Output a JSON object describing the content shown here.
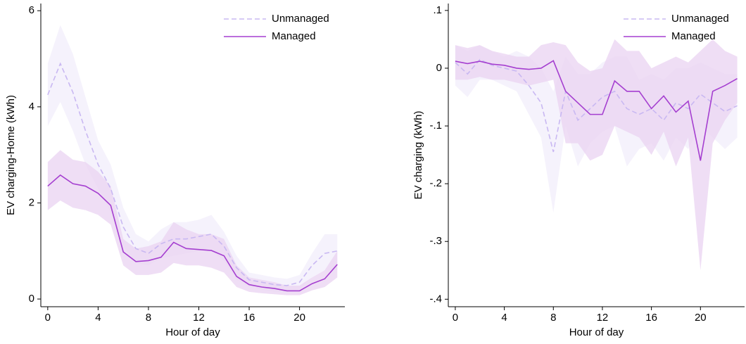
{
  "chart_data": [
    {
      "type": "line",
      "y_label": "EV charging-Home (kWh)",
      "x_label": "Hour of day",
      "x": [
        0,
        1,
        2,
        3,
        4,
        5,
        6,
        7,
        8,
        9,
        10,
        11,
        12,
        13,
        14,
        15,
        16,
        17,
        18,
        19,
        20,
        21,
        22,
        23
      ],
      "xlim": [
        -0.55,
        23.6
      ],
      "xticks": [
        0,
        4,
        8,
        12,
        16,
        20
      ],
      "ylim": [
        -0.16,
        6.15
      ],
      "yticks": [
        0,
        2,
        4,
        6
      ],
      "series": [
        {
          "name": "Unmanaged",
          "color": "#c9b8f2",
          "band_color": "#f2eefb",
          "dashed": true,
          "values": [
            4.25,
            4.9,
            4.3,
            3.5,
            2.8,
            2.3,
            1.5,
            1.05,
            0.95,
            1.15,
            1.25,
            1.25,
            1.3,
            1.35,
            1.1,
            0.65,
            0.4,
            0.35,
            0.3,
            0.28,
            0.35,
            0.7,
            0.95,
            1.0
          ],
          "ci_lower": [
            3.6,
            4.1,
            3.5,
            2.8,
            2.3,
            1.8,
            1.1,
            0.75,
            0.7,
            0.85,
            0.9,
            0.95,
            1.0,
            1.0,
            0.8,
            0.4,
            0.25,
            0.2,
            0.15,
            0.15,
            0.2,
            0.45,
            0.6,
            0.6
          ],
          "ci_upper": [
            4.9,
            5.7,
            5.1,
            4.2,
            3.3,
            2.8,
            1.9,
            1.35,
            1.2,
            1.45,
            1.6,
            1.6,
            1.65,
            1.75,
            1.4,
            0.9,
            0.55,
            0.5,
            0.45,
            0.42,
            0.5,
            0.95,
            1.35,
            1.35
          ]
        },
        {
          "name": "Managed",
          "color": "#a53fd0",
          "band_color": "#e9d3f1",
          "dashed": false,
          "values": [
            2.35,
            2.58,
            2.4,
            2.35,
            2.2,
            1.95,
            0.98,
            0.78,
            0.8,
            0.87,
            1.18,
            1.05,
            1.03,
            1.01,
            0.9,
            0.47,
            0.3,
            0.25,
            0.22,
            0.17,
            0.17,
            0.32,
            0.42,
            0.72
          ],
          "ci_lower": [
            1.85,
            2.05,
            1.9,
            1.85,
            1.75,
            1.55,
            0.7,
            0.5,
            0.5,
            0.55,
            0.75,
            0.7,
            0.7,
            0.65,
            0.55,
            0.25,
            0.15,
            0.12,
            0.1,
            0.08,
            0.08,
            0.18,
            0.25,
            0.45
          ],
          "ci_upper": [
            2.85,
            3.1,
            2.9,
            2.85,
            2.65,
            2.35,
            1.25,
            1.05,
            1.1,
            1.2,
            1.6,
            1.45,
            1.35,
            1.35,
            1.25,
            0.7,
            0.45,
            0.4,
            0.35,
            0.28,
            0.28,
            0.45,
            0.6,
            1.0
          ]
        }
      ]
    },
    {
      "type": "line",
      "y_label": "EV charging (kWh)",
      "x_label": "Hour of day",
      "x": [
        0,
        1,
        2,
        3,
        4,
        5,
        6,
        7,
        8,
        9,
        10,
        11,
        12,
        13,
        14,
        15,
        16,
        17,
        18,
        19,
        20,
        21,
        22,
        23
      ],
      "xlim": [
        -0.57,
        23.6
      ],
      "xticks": [
        0,
        4,
        8,
        12,
        16,
        20
      ],
      "ylim": [
        -0.413,
        0.112
      ],
      "yticks": [
        {
          "value": 0.1,
          "label": ".1"
        },
        0,
        {
          "value": -0.1,
          "label": "-.1"
        },
        {
          "value": -0.2,
          "label": "-.2"
        },
        {
          "value": -0.3,
          "label": "-.3"
        },
        {
          "value": -0.4,
          "label": "-.4"
        }
      ],
      "series": [
        {
          "name": "Unmanaged",
          "color": "#c9b8f2",
          "band_color": "#f2eefb",
          "dashed": true,
          "values": [
            0.01,
            -0.01,
            0.015,
            0.005,
            0.0,
            -0.005,
            -0.03,
            -0.06,
            -0.145,
            -0.04,
            -0.09,
            -0.07,
            -0.05,
            -0.04,
            -0.07,
            -0.08,
            -0.07,
            -0.09,
            -0.06,
            -0.07,
            -0.045,
            -0.06,
            -0.075,
            -0.065
          ],
          "ci_lower": [
            -0.03,
            -0.05,
            -0.02,
            -0.02,
            -0.03,
            -0.04,
            -0.08,
            -0.12,
            -0.25,
            -0.1,
            -0.17,
            -0.13,
            -0.11,
            -0.1,
            -0.17,
            -0.14,
            -0.13,
            -0.16,
            -0.12,
            -0.14,
            -0.1,
            -0.12,
            -0.14,
            -0.12
          ],
          "ci_upper": [
            0.04,
            0.03,
            0.04,
            0.03,
            0.02,
            0.03,
            0.02,
            0.0,
            -0.04,
            0.02,
            -0.01,
            -0.01,
            0.01,
            0.02,
            0.02,
            -0.02,
            -0.01,
            -0.02,
            0.0,
            0.0,
            0.01,
            0.0,
            -0.01,
            -0.01
          ]
        },
        {
          "name": "Managed",
          "color": "#a53fd0",
          "band_color": "#e9d3f1",
          "dashed": false,
          "values": [
            0.012,
            0.008,
            0.012,
            0.007,
            0.005,
            0.0,
            -0.002,
            0.0,
            0.013,
            -0.04,
            -0.06,
            -0.08,
            -0.08,
            -0.022,
            -0.04,
            -0.04,
            -0.07,
            -0.048,
            -0.076,
            -0.057,
            -0.16,
            -0.04,
            -0.03,
            -0.018
          ],
          "ci_lower": [
            -0.02,
            -0.02,
            -0.015,
            -0.02,
            -0.02,
            -0.025,
            -0.03,
            -0.025,
            -0.02,
            -0.13,
            -0.13,
            -0.16,
            -0.15,
            -0.1,
            -0.11,
            -0.12,
            -0.15,
            -0.11,
            -0.17,
            -0.12,
            -0.35,
            -0.13,
            -0.09,
            -0.06
          ],
          "ci_upper": [
            0.04,
            0.035,
            0.04,
            0.03,
            0.025,
            0.02,
            0.02,
            0.04,
            0.045,
            0.04,
            0.01,
            -0.005,
            0.0,
            0.05,
            0.03,
            0.03,
            0.0,
            0.01,
            0.02,
            0.01,
            0.03,
            0.05,
            0.03,
            0.02
          ]
        }
      ]
    }
  ]
}
